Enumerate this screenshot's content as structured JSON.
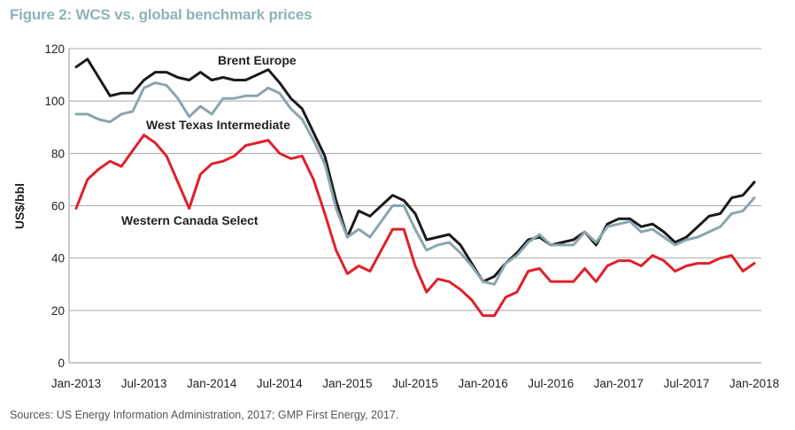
{
  "figure": {
    "title": "Figure 2:  WCS vs. global benchmark prices",
    "source": "Sources: US Energy Information Administration, 2017; GMP First Energy, 2017."
  },
  "chart_data": {
    "type": "line",
    "title": "Figure 2:  WCS vs. global benchmark prices",
    "xlabel": "",
    "ylabel": "US$/bbl",
    "ylim": [
      0,
      120
    ],
    "yticks": [
      0,
      20,
      40,
      60,
      80,
      100,
      120
    ],
    "grid": "horizontal",
    "legend": "inline-labels",
    "xtick_labels": [
      "Jan-2013",
      "Jul-2013",
      "Jan-2014",
      "Jul-2014",
      "Jan-2015",
      "Jul-2015",
      "Jan-2016",
      "Jul-2016",
      "Jan-2017",
      "Jul-2017",
      "Jan-2018"
    ],
    "x_frequency": "monthly",
    "x_start": "Jan-2013",
    "x_end": "Jan-2018",
    "series": [
      {
        "name": "Brent Europe",
        "color": "#1a1a1a",
        "values": [
          113,
          116,
          109,
          102,
          103,
          103,
          108,
          111,
          111,
          109,
          108,
          111,
          108,
          109,
          108,
          108,
          110,
          112,
          107,
          101,
          97,
          88,
          79,
          62,
          48,
          58,
          56,
          60,
          64,
          62,
          57,
          47,
          48,
          49,
          45,
          38,
          31,
          33,
          38,
          42,
          47,
          48,
          45,
          46,
          47,
          50,
          45,
          53,
          55,
          55,
          52,
          53,
          50,
          46,
          48,
          52,
          56,
          57,
          63,
          64,
          69
        ]
      },
      {
        "name": "West Texas Intermediate",
        "color": "#8aa5ad",
        "values": [
          95,
          95,
          93,
          92,
          95,
          96,
          105,
          107,
          106,
          101,
          94,
          98,
          95,
          101,
          101,
          102,
          102,
          105,
          103,
          97,
          93,
          85,
          76,
          59,
          48,
          51,
          48,
          54,
          60,
          60,
          51,
          43,
          45,
          46,
          42,
          37,
          31,
          30,
          38,
          41,
          46,
          49,
          45,
          45,
          45,
          50,
          46,
          52,
          53,
          54,
          50,
          51,
          48,
          45,
          47,
          48,
          50,
          52,
          57,
          58,
          63
        ]
      },
      {
        "name": "Western Canada Select",
        "color": "#e0202a",
        "values": [
          59,
          70,
          74,
          77,
          75,
          81,
          87,
          84,
          79,
          69,
          59,
          72,
          76,
          77,
          79,
          83,
          84,
          85,
          80,
          78,
          79,
          70,
          57,
          43,
          34,
          37,
          35,
          43,
          51,
          51,
          37,
          27,
          32,
          31,
          28,
          24,
          18,
          18,
          25,
          27,
          35,
          36,
          31,
          31,
          31,
          36,
          31,
          37,
          39,
          39,
          37,
          41,
          39,
          35,
          37,
          38,
          38,
          40,
          41,
          35,
          38
        ]
      }
    ],
    "annotations": [
      {
        "text": "Brent Europe",
        "near": "Brent Europe series, above Jul-2014 peak"
      },
      {
        "text": "West Texas Intermediate",
        "near": "WTI series, below Jul-2014"
      },
      {
        "text": "Western Canada Select",
        "near": "WCS series, below Jan-2014 trough"
      }
    ]
  }
}
